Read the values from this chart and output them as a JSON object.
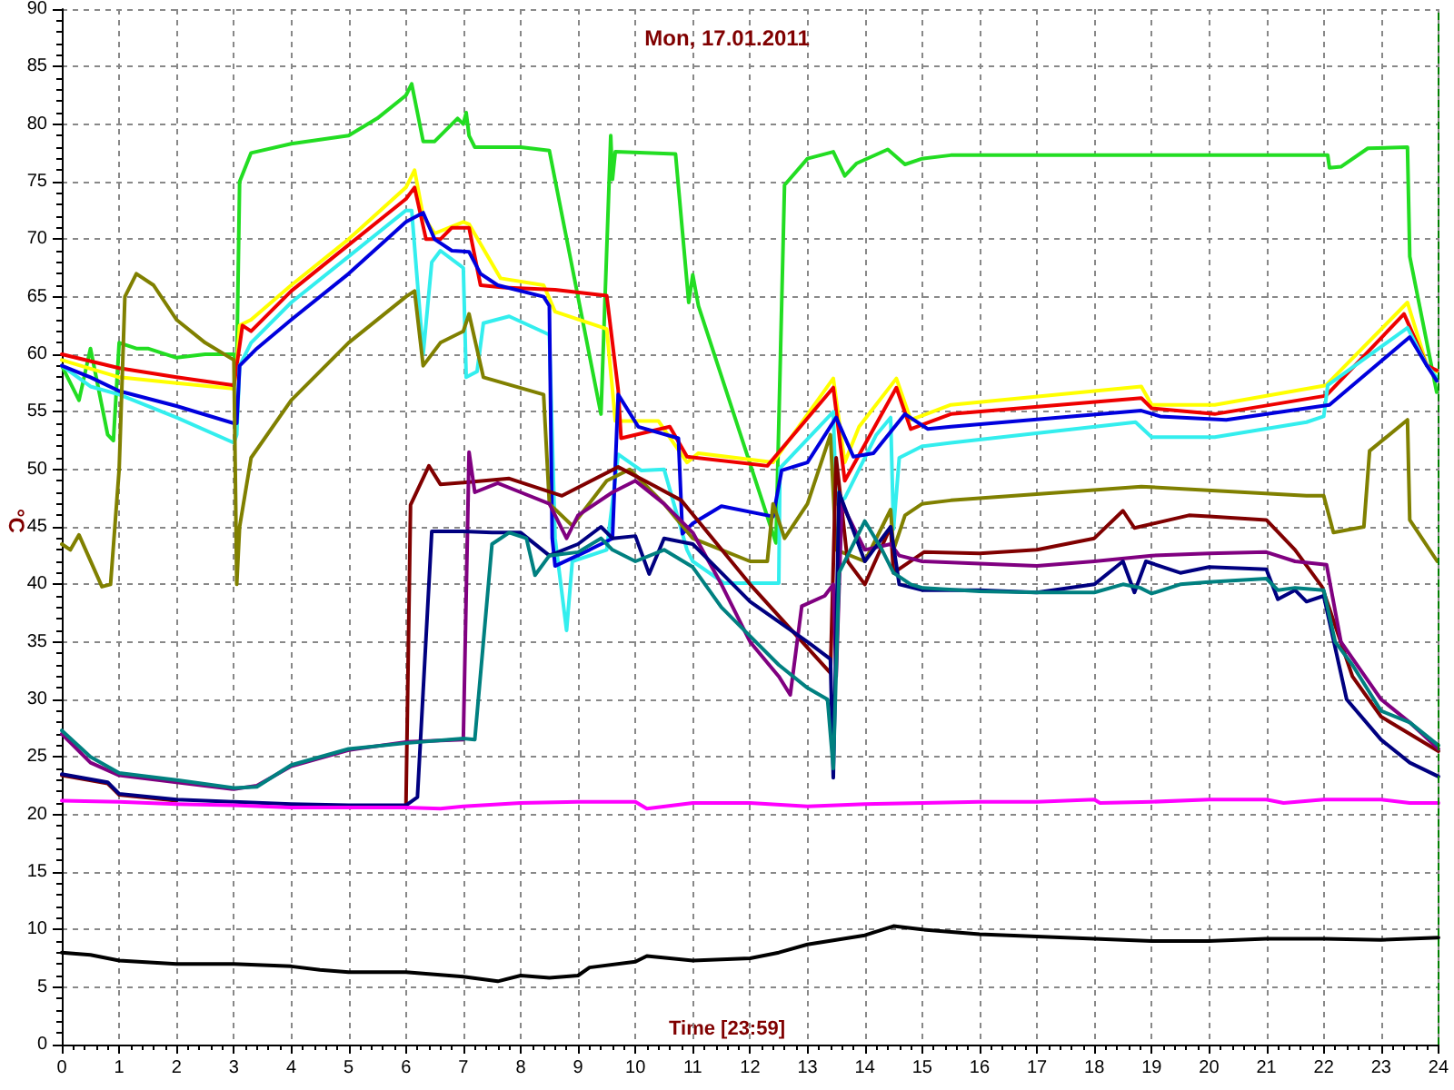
{
  "chart_data": {
    "type": "line",
    "title": "Mon, 17.01.2011",
    "xlabel": "Time [23:59]",
    "ylabel": "°C",
    "xlim": [
      0,
      24
    ],
    "xticks": [
      0,
      1,
      2,
      3,
      4,
      5,
      6,
      7,
      8,
      9,
      10,
      11,
      12,
      13,
      14,
      15,
      16,
      17,
      18,
      19,
      20,
      21,
      22,
      23,
      24
    ],
    "ylim": [
      0,
      90
    ],
    "yticks": [
      0,
      5,
      10,
      15,
      20,
      25,
      30,
      35,
      40,
      45,
      50,
      55,
      60,
      65,
      70,
      75,
      80,
      85,
      90
    ],
    "grid": true,
    "marker": "none",
    "line_style": "solid",
    "ref_lines": [
      {
        "axis": "x",
        "value": 24,
        "color": "#008000",
        "line_style": "dashed"
      }
    ],
    "series": [
      {
        "color": "#22dd22",
        "x": [
          0,
          0.1,
          0.3,
          0.5,
          0.6,
          0.8,
          0.9,
          1.0,
          1.3,
          1.5,
          2,
          2.5,
          3,
          3.05,
          3.1,
          3.3,
          4,
          5,
          5.5,
          6,
          6.1,
          6.3,
          6.5,
          6.9,
          7.0,
          7.05,
          7.1,
          7.2,
          8,
          8.5,
          9.4,
          9.57,
          9.6,
          9.65,
          10.7,
          10.93,
          11.0,
          11.1,
          12.45,
          12.6,
          13.0,
          13.45,
          13.65,
          13.86,
          14.4,
          14.7,
          15.0,
          15.5,
          22.07,
          22.1,
          22.3,
          22.77,
          23.46,
          23.5,
          23.97
        ],
        "values": [
          59,
          58,
          56,
          60.5,
          58,
          53,
          52.5,
          61,
          60.5,
          60.5,
          59.7,
          60,
          60,
          59,
          75,
          77.5,
          78.3,
          79,
          80.5,
          82.5,
          83.5,
          78.5,
          78.5,
          80.5,
          80,
          81,
          79,
          78,
          78,
          77.7,
          54.8,
          79,
          75.2,
          77.6,
          77.4,
          64.5,
          66.9,
          64.2,
          43.6,
          74.7,
          77,
          77.6,
          75.5,
          76.6,
          77.8,
          76.5,
          77,
          77.3,
          77.3,
          76.2,
          76.3,
          77.9,
          78,
          68.5,
          56.7
        ]
      },
      {
        "color": "#ffff00",
        "x": [
          0,
          1,
          2,
          3,
          3.05,
          3.1,
          3.3,
          4,
          5,
          6,
          6.15,
          6.3,
          6.5,
          7,
          7.1,
          7.65,
          8.4,
          8.6,
          9.5,
          9.6,
          9.65,
          10.4,
          10.9,
          11.1,
          12.4,
          13.45,
          13.65,
          13.9,
          14.55,
          14.8,
          15.5,
          18.82,
          19.0,
          20.1,
          22.04,
          23.46,
          23.8,
          23.97
        ],
        "values": [
          59.5,
          58,
          57.5,
          57,
          59,
          62.5,
          63,
          66,
          70,
          74.5,
          76,
          72,
          70.5,
          71.5,
          71.3,
          66.6,
          66,
          63.7,
          62.2,
          56.9,
          54.2,
          54.2,
          50.6,
          51.4,
          50.6,
          57.9,
          50.6,
          53.7,
          57.9,
          54.3,
          55.6,
          57.2,
          55.6,
          55.6,
          57.3,
          64.5,
          59,
          58.5
        ]
      },
      {
        "color": "#ee0000",
        "x": [
          0,
          1,
          2,
          3,
          3.05,
          3.15,
          3.3,
          4,
          5,
          6,
          6.15,
          6.35,
          6.6,
          6.8,
          7.1,
          7.3,
          7.7,
          8.6,
          9.5,
          9.7,
          9.75,
          10.6,
          10.9,
          12.3,
          13.45,
          13.65,
          14.55,
          14.8,
          15.5,
          18.82,
          19.0,
          20.1,
          22.04,
          23.4,
          23.8,
          23.97
        ],
        "values": [
          60,
          58.8,
          58,
          57.3,
          59,
          62.5,
          62,
          65.5,
          69.5,
          73.5,
          74.5,
          70,
          70,
          71,
          71,
          66,
          65.8,
          65.6,
          65.1,
          56.9,
          52.7,
          53.7,
          51.1,
          50.3,
          57.1,
          49,
          57.1,
          53.5,
          54.8,
          56.2,
          55.3,
          54.8,
          56.4,
          63.5,
          59,
          58.6
        ]
      },
      {
        "color": "#33eeee",
        "x": [
          0,
          0.5,
          1,
          2,
          3,
          3.05,
          3.1,
          3.3,
          4,
          5,
          6,
          6.1,
          6.3,
          6.45,
          6.6,
          7.0,
          7.05,
          7.24,
          7.35,
          7.8,
          8.5,
          8.6,
          8.8,
          8.9,
          9.5,
          9.7,
          10.1,
          10.5,
          10.9,
          11.0,
          11.55,
          12.5,
          12.52,
          13.3,
          13.45,
          13.5,
          13.65,
          13.9,
          14.2,
          14.45,
          14.5,
          14.6,
          15,
          15.5,
          18.72,
          19.0,
          20.1,
          21.7,
          22.0,
          22.07,
          23.46,
          23.8,
          23.97
        ],
        "values": [
          59,
          57.2,
          56.5,
          54.5,
          52.3,
          53,
          59,
          61,
          64.5,
          68.5,
          72.5,
          72.5,
          60,
          68,
          69,
          67.5,
          58,
          58.5,
          62.7,
          63.3,
          61.7,
          44,
          36,
          42,
          43,
          51.3,
          49.9,
          50,
          43,
          42,
          40.1,
          40.1,
          50.1,
          54.2,
          55,
          47,
          47.5,
          50,
          53,
          54.5,
          44.8,
          51,
          52,
          52.3,
          54.1,
          52.8,
          52.8,
          54.1,
          54.6,
          57.3,
          62.3,
          59,
          58
        ]
      },
      {
        "color": "#0000dd",
        "x": [
          0,
          0.5,
          1,
          2,
          3,
          3.05,
          3.1,
          3.4,
          4,
          5,
          6,
          6.3,
          6.5,
          6.8,
          7.1,
          7.3,
          7.6,
          8.4,
          8.5,
          8.55,
          8.6,
          9.2,
          9.6,
          9.7,
          10.05,
          10.75,
          10.82,
          11.0,
          11.5,
          12.4,
          12.55,
          13.0,
          13.5,
          13.8,
          14.15,
          14.7,
          15.1,
          15.5,
          18.82,
          19.15,
          20.3,
          22.1,
          23.5,
          23.8,
          23.97
        ],
        "values": [
          59,
          58,
          56.8,
          55.5,
          54,
          54,
          59,
          60.5,
          63,
          67,
          71.5,
          72.3,
          70,
          69,
          68.9,
          67,
          66,
          65,
          64.2,
          44,
          41.6,
          43,
          44,
          56.5,
          53.7,
          52.7,
          44.4,
          45.3,
          46.8,
          45.9,
          49.9,
          50.6,
          54.5,
          51.1,
          51.4,
          54.8,
          53.5,
          53.7,
          55.1,
          54.6,
          54.3,
          55.6,
          61.5,
          59,
          57.7
        ]
      },
      {
        "color": "#808000",
        "x": [
          0,
          0.15,
          0.3,
          0.7,
          0.85,
          1.0,
          1.1,
          1.3,
          1.6,
          2,
          2.5,
          3.0,
          3.05,
          3.1,
          3.3,
          4,
          5,
          6,
          6.15,
          6.3,
          6.6,
          7,
          7.1,
          7.35,
          8.4,
          8.5,
          8.9,
          9.5,
          9.9,
          10.5,
          11,
          12,
          12.3,
          12.4,
          12.6,
          13.0,
          13.4,
          13.5,
          14.0,
          14.45,
          14.5,
          14.7,
          15.0,
          15.5,
          18.82,
          21.7,
          22.0,
          22.17,
          22.7,
          22.8,
          23.46,
          23.5,
          23.98
        ],
        "values": [
          43.5,
          43,
          44.3,
          39.8,
          40,
          50,
          65,
          67,
          66,
          63,
          61,
          59.5,
          40,
          45,
          51,
          56,
          61,
          65,
          65.5,
          59,
          61,
          62,
          63.5,
          58,
          56.5,
          47,
          45.1,
          49,
          50,
          47,
          44,
          42,
          42,
          47,
          44,
          47,
          53,
          43,
          42,
          46.5,
          43,
          46,
          47,
          47.3,
          48.5,
          47.7,
          47.7,
          44.5,
          45,
          51.6,
          54.3,
          45.6,
          42
        ]
      },
      {
        "color": "#800000",
        "x": [
          0,
          0.8,
          1,
          2,
          3,
          4,
          5,
          6,
          6.08,
          6.4,
          6.6,
          7.14,
          7.8,
          8.72,
          9.7,
          10.2,
          10.8,
          12,
          13.4,
          13.5,
          13.7,
          14,
          14.45,
          14.5,
          15.03,
          16,
          17,
          18,
          18.5,
          18.7,
          19.65,
          20,
          21,
          21.5,
          21.97,
          22.5,
          23,
          23.5,
          24
        ],
        "values": [
          23.4,
          22.7,
          21.7,
          21.2,
          null,
          null,
          null,
          20.7,
          46.9,
          50.3,
          48.7,
          48.9,
          49.2,
          47.7,
          50.2,
          48.9,
          47.3,
          40,
          32.3,
          51,
          42,
          40,
          45,
          41,
          42.8,
          42.7,
          43,
          44,
          46.4,
          44.9,
          46,
          45.9,
          45.6,
          43,
          39.8,
          32,
          28.5,
          27,
          25.5
        ]
      },
      {
        "color": "#800080",
        "x": [
          0,
          0.5,
          1,
          2,
          3,
          3.4,
          4,
          5,
          6,
          7,
          7.1,
          7.2,
          7.6,
          8,
          8.5,
          8.8,
          9.0,
          9.6,
          10,
          10.5,
          11,
          11.5,
          12,
          12.5,
          12.7,
          12.9,
          13.3,
          13.45,
          13.5,
          13.6,
          14.0,
          14.45,
          14.6,
          15,
          16,
          17,
          18,
          19,
          20,
          21,
          21.5,
          22.05,
          22.3,
          23,
          23.5,
          24
        ],
        "values": [
          27,
          24.5,
          23.4,
          22.8,
          22.2,
          22.5,
          24.2,
          25.6,
          26.3,
          26.5,
          51.5,
          48,
          48.8,
          48,
          47,
          44,
          46,
          48,
          49,
          47,
          44.5,
          40,
          35,
          32,
          30.4,
          38.1,
          39,
          40,
          32,
          47,
          43,
          43.5,
          42.5,
          42,
          41.8,
          41.6,
          42,
          42.5,
          42.7,
          42.8,
          42,
          41.7,
          35,
          30,
          28,
          25.7
        ]
      },
      {
        "color": "#000080",
        "x": [
          0,
          0.8,
          1,
          2,
          3,
          4,
          5,
          6,
          6.2,
          6.45,
          7,
          7.5,
          8,
          8.5,
          9,
          9.4,
          9.6,
          10,
          10.24,
          10.5,
          11,
          11.5,
          12,
          13,
          13.4,
          13.45,
          13.55,
          14,
          14.45,
          14.6,
          15,
          16,
          17,
          18,
          18.5,
          18.7,
          18.9,
          19.5,
          20,
          21,
          21.2,
          21.5,
          21.7,
          22,
          22.4,
          23,
          23.5,
          24
        ],
        "values": [
          23.5,
          22.8,
          21.8,
          21.3,
          21.1,
          20.9,
          20.8,
          20.8,
          21.5,
          44.6,
          44.6,
          44.5,
          44.5,
          42.5,
          43.5,
          45,
          44,
          44.2,
          40.9,
          44,
          43.5,
          41,
          38.5,
          35,
          33.5,
          23.2,
          48,
          42,
          45,
          40,
          39.5,
          39.5,
          39.3,
          40,
          42,
          39.3,
          42,
          41,
          41.5,
          41.3,
          38.7,
          39.5,
          38.5,
          39,
          30,
          26.5,
          24.5,
          23.3
        ]
      },
      {
        "color": "#008080",
        "x": [
          0,
          0.5,
          1,
          2,
          3,
          3.4,
          4,
          5,
          6,
          7,
          7.2,
          7.5,
          7.8,
          8.1,
          8.25,
          8.5,
          9,
          9.4,
          9.6,
          10,
          10.5,
          11,
          11.5,
          12,
          12.5,
          13,
          13.35,
          13.45,
          13.55,
          14,
          14.3,
          14.5,
          14.8,
          15,
          16,
          17,
          18,
          18.5,
          18.8,
          19,
          19.5,
          20,
          21,
          21.2,
          21.5,
          22,
          22.2,
          22.5,
          23,
          23.5,
          24
        ],
        "values": [
          27.3,
          25,
          23.6,
          23,
          22.3,
          22.4,
          24.3,
          25.7,
          26.2,
          26.6,
          26.5,
          43.5,
          44.5,
          44,
          40.8,
          42.5,
          42.8,
          44,
          43,
          42,
          43,
          41.5,
          38,
          35.5,
          33,
          31,
          30,
          24,
          41,
          45.5,
          43,
          41,
          40,
          39.7,
          39.4,
          39.3,
          39.3,
          40,
          39.7,
          39.2,
          40,
          40.2,
          40.5,
          39.5,
          39.7,
          39.5,
          35,
          33,
          29,
          28,
          26
        ]
      },
      {
        "color": "#ff00ff",
        "x": [
          0,
          1,
          2,
          3,
          4,
          5,
          6,
          6.6,
          7,
          8,
          9,
          10,
          10.2,
          11,
          12,
          13,
          14,
          15,
          16,
          17,
          18,
          18.1,
          19,
          20,
          21,
          21.3,
          22,
          23,
          23.5,
          24
        ],
        "values": [
          21.2,
          21.1,
          20.9,
          20.8,
          20.6,
          20.6,
          20.6,
          20.5,
          20.7,
          21,
          21.1,
          21.1,
          20.5,
          21,
          21,
          20.7,
          20.9,
          21,
          21.1,
          21.1,
          21.3,
          21,
          21.1,
          21.3,
          21.3,
          21,
          21.3,
          21.3,
          21,
          21
        ]
      },
      {
        "color": "#000000",
        "x": [
          0,
          0.5,
          1,
          2,
          3,
          4,
          4.5,
          5,
          6,
          7,
          7.6,
          8,
          8.5,
          9,
          9.2,
          10,
          10.2,
          11,
          12,
          12.5,
          13,
          14,
          14.5,
          15,
          16,
          17,
          18,
          19,
          20,
          21,
          22,
          23,
          24
        ],
        "values": [
          8,
          7.8,
          7.3,
          7,
          7,
          6.8,
          6.5,
          6.3,
          6.3,
          5.9,
          5.5,
          6,
          5.8,
          6,
          6.7,
          7.2,
          7.7,
          7.3,
          7.5,
          8,
          8.7,
          9.5,
          10.3,
          10,
          9.6,
          9.4,
          9.2,
          9,
          9,
          9.2,
          9.2,
          9.1,
          9.3
        ]
      }
    ]
  }
}
